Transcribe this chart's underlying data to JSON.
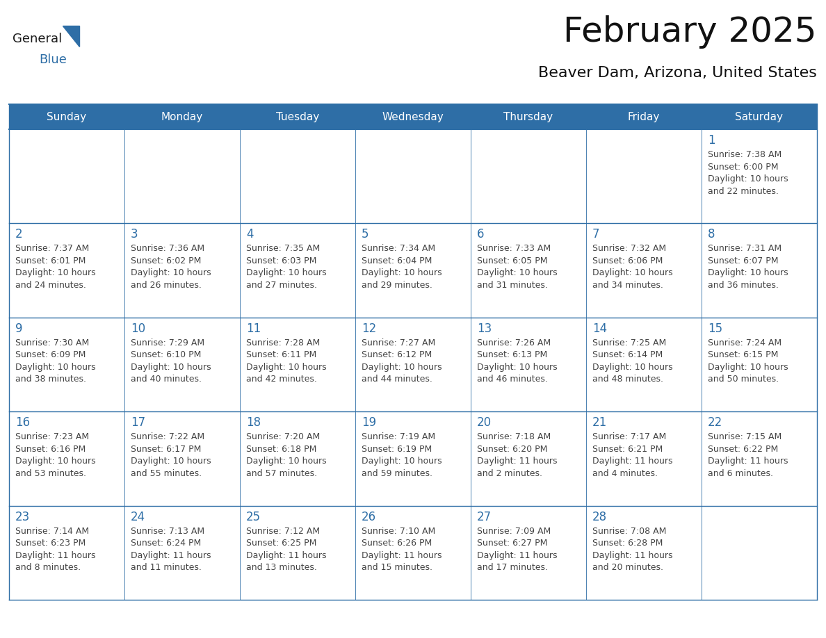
{
  "title": "February 2025",
  "subtitle": "Beaver Dam, Arizona, United States",
  "header_bg": "#2E6EA6",
  "header_text_color": "#FFFFFF",
  "cell_bg": "#FFFFFF",
  "alt_cell_bg": "#F0F4F8",
  "day_number_color": "#2E6EA6",
  "text_color": "#444444",
  "line_color": "#2E6EA6",
  "days_of_week": [
    "Sunday",
    "Monday",
    "Tuesday",
    "Wednesday",
    "Thursday",
    "Friday",
    "Saturday"
  ],
  "calendar_data": [
    [
      null,
      null,
      null,
      null,
      null,
      null,
      1
    ],
    [
      2,
      3,
      4,
      5,
      6,
      7,
      8
    ],
    [
      9,
      10,
      11,
      12,
      13,
      14,
      15
    ],
    [
      16,
      17,
      18,
      19,
      20,
      21,
      22
    ],
    [
      23,
      24,
      25,
      26,
      27,
      28,
      null
    ]
  ],
  "cell_info": {
    "1": {
      "sunrise": "7:38 AM",
      "sunset": "6:00 PM",
      "daylight_line1": "Daylight: 10 hours",
      "daylight_line2": "and 22 minutes."
    },
    "2": {
      "sunrise": "7:37 AM",
      "sunset": "6:01 PM",
      "daylight_line1": "Daylight: 10 hours",
      "daylight_line2": "and 24 minutes."
    },
    "3": {
      "sunrise": "7:36 AM",
      "sunset": "6:02 PM",
      "daylight_line1": "Daylight: 10 hours",
      "daylight_line2": "and 26 minutes."
    },
    "4": {
      "sunrise": "7:35 AM",
      "sunset": "6:03 PM",
      "daylight_line1": "Daylight: 10 hours",
      "daylight_line2": "and 27 minutes."
    },
    "5": {
      "sunrise": "7:34 AM",
      "sunset": "6:04 PM",
      "daylight_line1": "Daylight: 10 hours",
      "daylight_line2": "and 29 minutes."
    },
    "6": {
      "sunrise": "7:33 AM",
      "sunset": "6:05 PM",
      "daylight_line1": "Daylight: 10 hours",
      "daylight_line2": "and 31 minutes."
    },
    "7": {
      "sunrise": "7:32 AM",
      "sunset": "6:06 PM",
      "daylight_line1": "Daylight: 10 hours",
      "daylight_line2": "and 34 minutes."
    },
    "8": {
      "sunrise": "7:31 AM",
      "sunset": "6:07 PM",
      "daylight_line1": "Daylight: 10 hours",
      "daylight_line2": "and 36 minutes."
    },
    "9": {
      "sunrise": "7:30 AM",
      "sunset": "6:09 PM",
      "daylight_line1": "Daylight: 10 hours",
      "daylight_line2": "and 38 minutes."
    },
    "10": {
      "sunrise": "7:29 AM",
      "sunset": "6:10 PM",
      "daylight_line1": "Daylight: 10 hours",
      "daylight_line2": "and 40 minutes."
    },
    "11": {
      "sunrise": "7:28 AM",
      "sunset": "6:11 PM",
      "daylight_line1": "Daylight: 10 hours",
      "daylight_line2": "and 42 minutes."
    },
    "12": {
      "sunrise": "7:27 AM",
      "sunset": "6:12 PM",
      "daylight_line1": "Daylight: 10 hours",
      "daylight_line2": "and 44 minutes."
    },
    "13": {
      "sunrise": "7:26 AM",
      "sunset": "6:13 PM",
      "daylight_line1": "Daylight: 10 hours",
      "daylight_line2": "and 46 minutes."
    },
    "14": {
      "sunrise": "7:25 AM",
      "sunset": "6:14 PM",
      "daylight_line1": "Daylight: 10 hours",
      "daylight_line2": "and 48 minutes."
    },
    "15": {
      "sunrise": "7:24 AM",
      "sunset": "6:15 PM",
      "daylight_line1": "Daylight: 10 hours",
      "daylight_line2": "and 50 minutes."
    },
    "16": {
      "sunrise": "7:23 AM",
      "sunset": "6:16 PM",
      "daylight_line1": "Daylight: 10 hours",
      "daylight_line2": "and 53 minutes."
    },
    "17": {
      "sunrise": "7:22 AM",
      "sunset": "6:17 PM",
      "daylight_line1": "Daylight: 10 hours",
      "daylight_line2": "and 55 minutes."
    },
    "18": {
      "sunrise": "7:20 AM",
      "sunset": "6:18 PM",
      "daylight_line1": "Daylight: 10 hours",
      "daylight_line2": "and 57 minutes."
    },
    "19": {
      "sunrise": "7:19 AM",
      "sunset": "6:19 PM",
      "daylight_line1": "Daylight: 10 hours",
      "daylight_line2": "and 59 minutes."
    },
    "20": {
      "sunrise": "7:18 AM",
      "sunset": "6:20 PM",
      "daylight_line1": "Daylight: 11 hours",
      "daylight_line2": "and 2 minutes."
    },
    "21": {
      "sunrise": "7:17 AM",
      "sunset": "6:21 PM",
      "daylight_line1": "Daylight: 11 hours",
      "daylight_line2": "and 4 minutes."
    },
    "22": {
      "sunrise": "7:15 AM",
      "sunset": "6:22 PM",
      "daylight_line1": "Daylight: 11 hours",
      "daylight_line2": "and 6 minutes."
    },
    "23": {
      "sunrise": "7:14 AM",
      "sunset": "6:23 PM",
      "daylight_line1": "Daylight: 11 hours",
      "daylight_line2": "and 8 minutes."
    },
    "24": {
      "sunrise": "7:13 AM",
      "sunset": "6:24 PM",
      "daylight_line1": "Daylight: 11 hours",
      "daylight_line2": "and 11 minutes."
    },
    "25": {
      "sunrise": "7:12 AM",
      "sunset": "6:25 PM",
      "daylight_line1": "Daylight: 11 hours",
      "daylight_line2": "and 13 minutes."
    },
    "26": {
      "sunrise": "7:10 AM",
      "sunset": "6:26 PM",
      "daylight_line1": "Daylight: 11 hours",
      "daylight_line2": "and 15 minutes."
    },
    "27": {
      "sunrise": "7:09 AM",
      "sunset": "6:27 PM",
      "daylight_line1": "Daylight: 11 hours",
      "daylight_line2": "and 17 minutes."
    },
    "28": {
      "sunrise": "7:08 AM",
      "sunset": "6:28 PM",
      "daylight_line1": "Daylight: 11 hours",
      "daylight_line2": "and 20 minutes."
    }
  },
  "logo_general_color": "#1a1a1a",
  "logo_blue_color": "#2E6EA6",
  "logo_triangle_color": "#2E6EA6",
  "title_fontsize": 36,
  "subtitle_fontsize": 16,
  "header_fontsize": 11,
  "day_num_fontsize": 12,
  "cell_text_fontsize": 9
}
